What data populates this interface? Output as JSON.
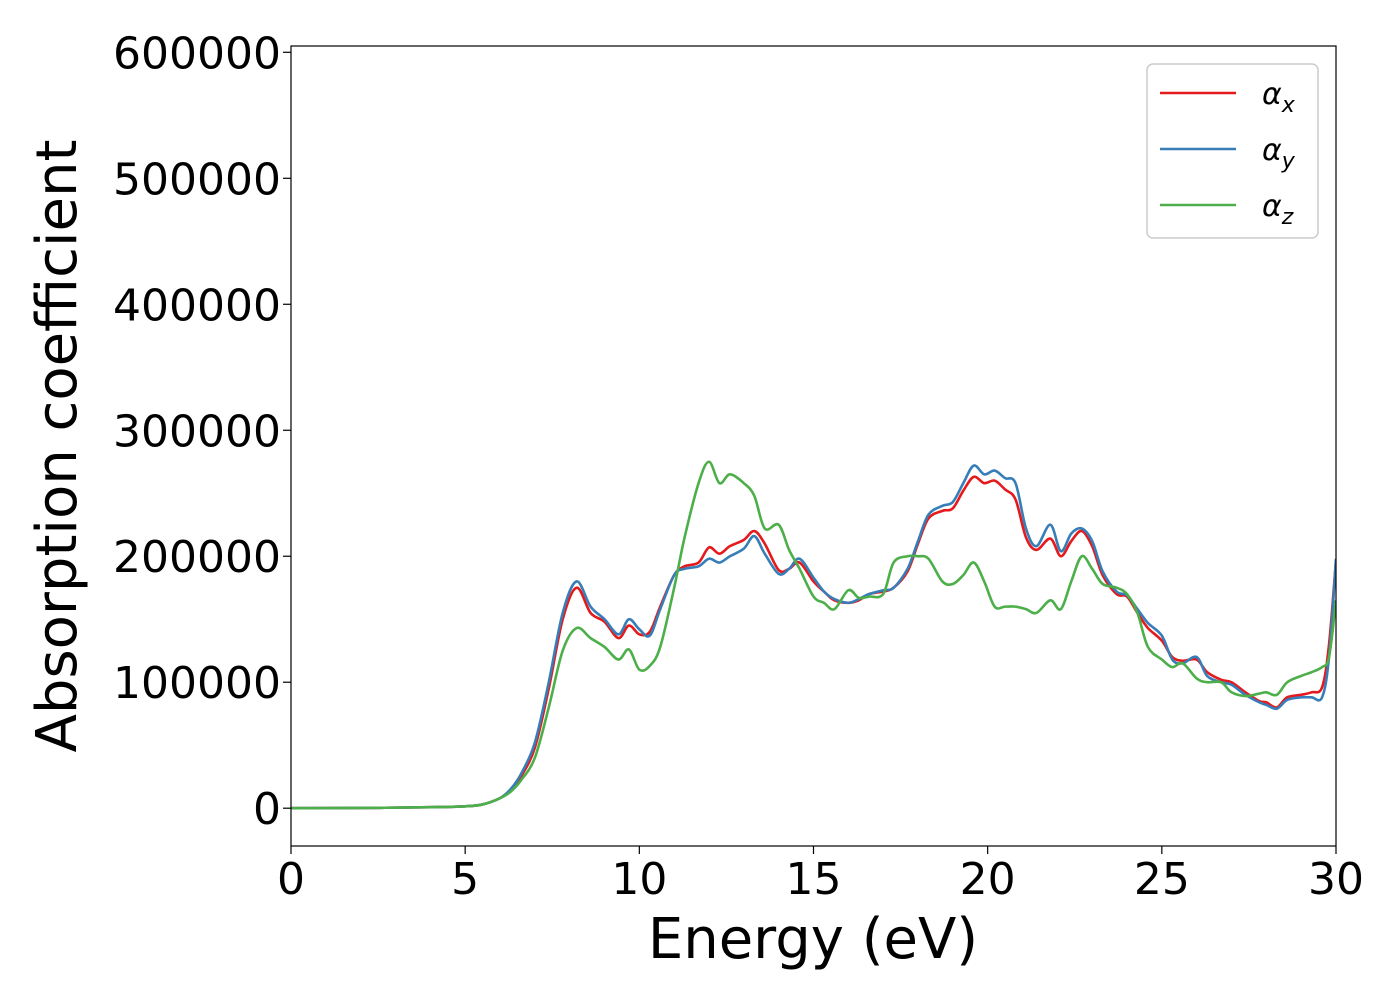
{
  "chart_data": {
    "type": "line",
    "xlabel": "Energy (eV)",
    "ylabel": "Absorption coefficient",
    "xlim": [
      0,
      30
    ],
    "ylim": [
      -30000,
      605000
    ],
    "x_ticks": [
      0,
      5,
      10,
      15,
      20,
      25,
      30
    ],
    "y_ticks": [
      0,
      100000,
      200000,
      300000,
      400000,
      500000,
      600000
    ],
    "grid": false,
    "legend_position": "top-right",
    "series": [
      {
        "name": "αx",
        "base": "α",
        "sub": "x",
        "color": "#e41a1c",
        "x": [
          0,
          2,
          4,
          5,
          5.5,
          6,
          6.3,
          6.6,
          7,
          7.4,
          7.8,
          8.2,
          8.6,
          9,
          9.4,
          9.7,
          10,
          10.3,
          10.6,
          11,
          11.3,
          11.7,
          12,
          12.3,
          12.6,
          13,
          13.3,
          13.6,
          14,
          14.3,
          14.6,
          15,
          15.3,
          15.6,
          16,
          16.3,
          16.6,
          17,
          17.3,
          17.7,
          18,
          18.3,
          18.7,
          19,
          19.3,
          19.6,
          19.9,
          20.2,
          20.5,
          20.8,
          21.1,
          21.4,
          21.8,
          22.1,
          22.4,
          22.7,
          23,
          23.3,
          23.7,
          24,
          24.3,
          24.6,
          25,
          25.3,
          25.6,
          26,
          26.3,
          26.7,
          27,
          27.4,
          27.8,
          28,
          28.3,
          28.6,
          29,
          29.3,
          29.6,
          29.8,
          30
        ],
        "values": [
          0,
          200,
          800,
          1500,
          3000,
          8000,
          14000,
          25000,
          48000,
          95000,
          150000,
          175000,
          155000,
          148000,
          135000,
          145000,
          138000,
          140000,
          160000,
          185000,
          192000,
          195000,
          207000,
          202000,
          208000,
          213000,
          220000,
          210000,
          189000,
          190000,
          195000,
          180000,
          172000,
          165000,
          163000,
          165000,
          170000,
          172000,
          175000,
          188000,
          210000,
          230000,
          236000,
          238000,
          252000,
          263000,
          258000,
          260000,
          253000,
          245000,
          215000,
          205000,
          214000,
          200000,
          212000,
          220000,
          208000,
          185000,
          170000,
          168000,
          155000,
          143000,
          133000,
          120000,
          117000,
          118000,
          108000,
          102000,
          100000,
          92000,
          85000,
          84000,
          80000,
          88000,
          90000,
          92000,
          96000,
          130000,
          197000
        ]
      },
      {
        "name": "αy",
        "base": "α",
        "sub": "y",
        "color": "#377eb8",
        "x": [
          0,
          2,
          4,
          5,
          5.5,
          6,
          6.3,
          6.6,
          7,
          7.4,
          7.8,
          8.2,
          8.6,
          9,
          9.4,
          9.7,
          10,
          10.3,
          10.6,
          11,
          11.3,
          11.7,
          12,
          12.3,
          12.6,
          13,
          13.3,
          13.6,
          14,
          14.3,
          14.6,
          15,
          15.3,
          15.6,
          16,
          16.3,
          16.6,
          17,
          17.3,
          17.7,
          18,
          18.3,
          18.7,
          19,
          19.3,
          19.6,
          19.9,
          20.2,
          20.5,
          20.8,
          21.1,
          21.4,
          21.8,
          22.1,
          22.4,
          22.7,
          23,
          23.3,
          23.7,
          24,
          24.3,
          24.6,
          25,
          25.3,
          25.6,
          26,
          26.3,
          26.7,
          27,
          27.4,
          27.8,
          28,
          28.3,
          28.6,
          29,
          29.3,
          29.6,
          29.8,
          30
        ],
        "values": [
          0,
          200,
          800,
          1500,
          3000,
          8000,
          15000,
          27000,
          52000,
          100000,
          155000,
          180000,
          160000,
          150000,
          138000,
          150000,
          142000,
          137000,
          158000,
          185000,
          190000,
          192000,
          198000,
          195000,
          200000,
          206000,
          216000,
          202000,
          186000,
          190000,
          198000,
          183000,
          172000,
          166000,
          163000,
          166000,
          170000,
          173000,
          175000,
          190000,
          212000,
          233000,
          240000,
          243000,
          258000,
          272000,
          265000,
          268000,
          262000,
          258000,
          222000,
          208000,
          225000,
          204000,
          218000,
          222000,
          212000,
          188000,
          172000,
          169000,
          158000,
          147000,
          137000,
          118000,
          115000,
          120000,
          105000,
          100000,
          98000,
          90000,
          84000,
          82000,
          79000,
          86000,
          88000,
          88000,
          88000,
          120000,
          198000
        ]
      },
      {
        "name": "αz",
        "base": "α",
        "sub": "z",
        "color": "#4daf4a",
        "x": [
          0,
          2,
          4,
          5,
          5.5,
          6,
          6.3,
          6.6,
          7,
          7.4,
          7.8,
          8.2,
          8.6,
          9,
          9.4,
          9.7,
          10,
          10.3,
          10.6,
          11,
          11.3,
          11.7,
          12,
          12.3,
          12.6,
          13,
          13.3,
          13.6,
          14,
          14.3,
          14.6,
          15,
          15.3,
          15.6,
          16,
          16.3,
          16.6,
          17,
          17.3,
          17.7,
          18,
          18.3,
          18.7,
          19,
          19.3,
          19.6,
          19.9,
          20.2,
          20.5,
          20.8,
          21.1,
          21.4,
          21.8,
          22.1,
          22.4,
          22.7,
          23,
          23.3,
          23.7,
          24,
          24.3,
          24.6,
          25,
          25.3,
          25.6,
          26,
          26.3,
          26.7,
          27,
          27.4,
          27.8,
          28,
          28.3,
          28.6,
          29,
          29.3,
          29.6,
          29.8,
          30
        ],
        "values": [
          0,
          200,
          800,
          1500,
          3000,
          8000,
          13000,
          22000,
          40000,
          80000,
          125000,
          143000,
          135000,
          128000,
          118000,
          126000,
          110000,
          113000,
          128000,
          175000,
          215000,
          258000,
          275000,
          258000,
          265000,
          258000,
          248000,
          222000,
          225000,
          205000,
          190000,
          168000,
          163000,
          158000,
          173000,
          167000,
          168000,
          170000,
          195000,
          200000,
          200000,
          198000,
          180000,
          178000,
          185000,
          195000,
          180000,
          160000,
          160000,
          160000,
          158000,
          155000,
          165000,
          158000,
          180000,
          200000,
          190000,
          178000,
          175000,
          170000,
          155000,
          128000,
          118000,
          112000,
          115000,
          103000,
          100000,
          100000,
          92000,
          89000,
          91000,
          92000,
          90000,
          100000,
          105000,
          108000,
          112000,
          120000,
          165000
        ]
      }
    ]
  }
}
